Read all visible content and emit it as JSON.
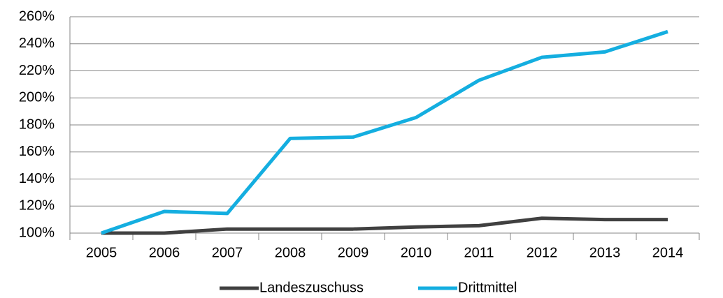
{
  "chart_data": {
    "type": "line",
    "categories": [
      "2005",
      "2006",
      "2007",
      "2008",
      "2009",
      "2010",
      "2011",
      "2012",
      "2013",
      "2014"
    ],
    "series": [
      {
        "name": "Landeszuschuss",
        "color": "#404040",
        "values": [
          100,
          100,
          103,
          103,
          103,
          104.5,
          105.5,
          111,
          110,
          110
        ]
      },
      {
        "name": "Drittmittel",
        "color": "#14aee0",
        "values": [
          100,
          116,
          114.5,
          170,
          171,
          185.5,
          213,
          230,
          234,
          249
        ]
      }
    ],
    "ylim": [
      100,
      260
    ],
    "yticks": [
      {
        "value": 100,
        "label": "100%"
      },
      {
        "value": 120,
        "label": "120%"
      },
      {
        "value": 140,
        "label": "140%"
      },
      {
        "value": 160,
        "label": "160%"
      },
      {
        "value": 180,
        "label": "180%"
      },
      {
        "value": 200,
        "label": "200%"
      },
      {
        "value": 220,
        "label": "220%"
      },
      {
        "value": 240,
        "label": "240%"
      },
      {
        "value": 260,
        "label": "260%"
      }
    ],
    "grid": true,
    "legend": "bottom"
  }
}
